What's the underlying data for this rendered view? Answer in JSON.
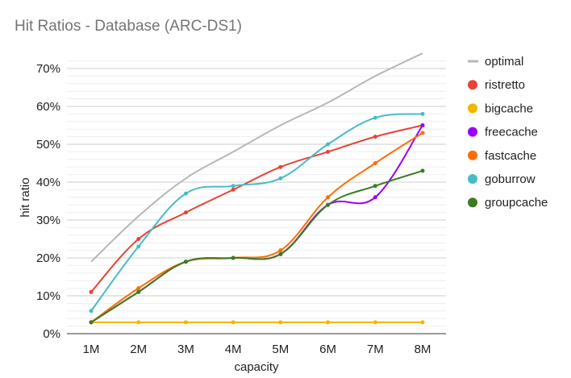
{
  "chart_data": {
    "type": "line",
    "title": "Hit Ratios - Database (ARC-DS1)",
    "xlabel": "capacity",
    "ylabel": "hit ratio",
    "categories": [
      "1M",
      "2M",
      "3M",
      "4M",
      "5M",
      "6M",
      "7M",
      "8M"
    ],
    "ylim": [
      0,
      70
    ],
    "yticks": [
      0,
      10,
      20,
      30,
      40,
      50,
      60,
      70
    ],
    "ytick_labels": [
      "0%",
      "10%",
      "20%",
      "30%",
      "40%",
      "50%",
      "60%",
      "70%"
    ],
    "grid": true,
    "legend_position": "right",
    "series": [
      {
        "name": "optimal",
        "color": "#b7b7b7",
        "marker": "line",
        "show_points": false,
        "values": [
          19,
          31,
          41,
          48,
          55,
          61,
          68,
          74
        ]
      },
      {
        "name": "ristretto",
        "color": "#e84335",
        "marker": "circle",
        "show_points": true,
        "values": [
          11,
          25,
          32,
          38,
          44,
          48,
          52,
          55
        ]
      },
      {
        "name": "bigcache",
        "color": "#f4b400",
        "marker": "circle",
        "show_points": true,
        "values": [
          3,
          3,
          3,
          3,
          3,
          3,
          3,
          3
        ]
      },
      {
        "name": "freecache",
        "color": "#9900ff",
        "marker": "circle",
        "show_points": true,
        "values": [
          3,
          11,
          19,
          20,
          21,
          34,
          36,
          55
        ]
      },
      {
        "name": "fastcache",
        "color": "#ff6d01",
        "marker": "circle",
        "show_points": true,
        "values": [
          3,
          12,
          19,
          20,
          22,
          36,
          45,
          53
        ]
      },
      {
        "name": "goburrow",
        "color": "#46bdc6",
        "marker": "circle",
        "show_points": true,
        "values": [
          6,
          23,
          37,
          39,
          41,
          50,
          57,
          58
        ]
      },
      {
        "name": "groupcache",
        "color": "#3d7c21",
        "marker": "circle",
        "show_points": true,
        "values": [
          3,
          11,
          19,
          20,
          21,
          34,
          39,
          43
        ]
      }
    ]
  }
}
